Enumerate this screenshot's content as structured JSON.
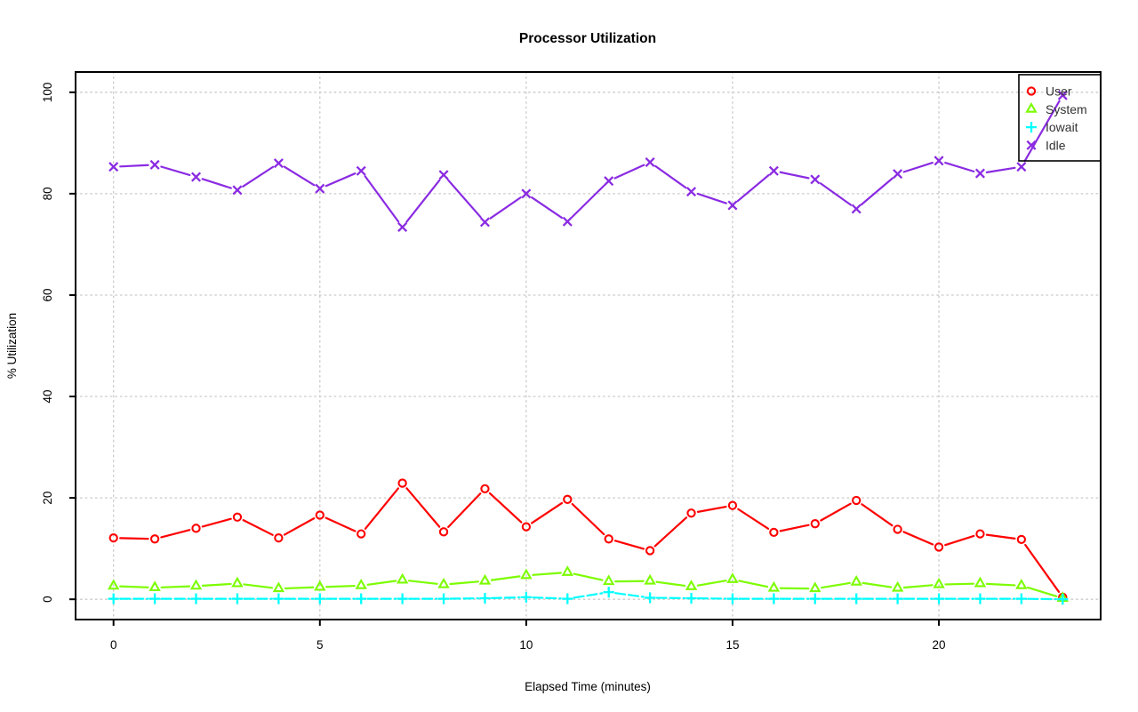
{
  "chart_data": {
    "type": "line",
    "title": "Processor Utilization",
    "xlabel": "Elapsed Time (minutes)",
    "ylabel": "% Utilization",
    "xlim": [
      0,
      23
    ],
    "ylim": [
      0,
      100
    ],
    "xticks": [
      0,
      5,
      10,
      15,
      20
    ],
    "xtick_labels": [
      "0",
      "5",
      "10",
      "15",
      "20"
    ],
    "yticks": [
      0,
      20,
      40,
      60,
      80,
      100
    ],
    "ytick_labels": [
      "0",
      "20",
      "40",
      "60",
      "80",
      "100"
    ],
    "grid": true,
    "grid_style": "dotted",
    "legend_position": "top-right",
    "x": [
      0,
      1,
      2,
      3,
      4,
      5,
      6,
      7,
      8,
      9,
      10,
      11,
      12,
      13,
      14,
      15,
      16,
      17,
      18,
      19,
      20,
      21,
      22,
      23
    ],
    "series": [
      {
        "name": "User",
        "color": "#ff0000",
        "marker": "circle",
        "line_style": "solid",
        "values": [
          12.1,
          11.9,
          14.0,
          16.2,
          12.1,
          16.6,
          12.9,
          22.9,
          13.3,
          21.8,
          14.3,
          19.7,
          11.9,
          9.6,
          17.0,
          18.5,
          13.2,
          14.9,
          19.5,
          13.8,
          10.3,
          12.9,
          11.8,
          0.4
        ]
      },
      {
        "name": "System",
        "color": "#7cfc00",
        "marker": "triangle",
        "line_style": "solid",
        "values": [
          2.6,
          2.3,
          2.6,
          3.1,
          2.1,
          2.4,
          2.7,
          3.8,
          2.9,
          3.6,
          4.7,
          5.3,
          3.5,
          3.6,
          2.5,
          3.9,
          2.2,
          2.1,
          3.4,
          2.2,
          2.9,
          3.1,
          2.7,
          0.2
        ]
      },
      {
        "name": "Iowait",
        "color": "#00ffff",
        "marker": "plus",
        "line_style": "dashed",
        "values": [
          0.1,
          0.1,
          0.1,
          0.1,
          0.1,
          0.1,
          0.1,
          0.1,
          0.1,
          0.2,
          0.4,
          0.1,
          1.4,
          0.3,
          0.2,
          0.1,
          0.1,
          0.1,
          0.1,
          0.1,
          0.1,
          0.1,
          0.1,
          0.0
        ]
      },
      {
        "name": "Idle",
        "color": "#8a2be2",
        "marker": "x",
        "line_style": "solid",
        "values": [
          85.3,
          85.7,
          83.3,
          80.7,
          86.0,
          81.0,
          84.5,
          73.4,
          83.7,
          74.4,
          80.0,
          74.5,
          82.5,
          86.2,
          80.4,
          77.7,
          84.5,
          82.8,
          77.0,
          83.9,
          86.5,
          84.0,
          85.3,
          99.4
        ]
      }
    ],
    "colors": {
      "background": "#ffffff",
      "grid": "#c9c9c9",
      "axis": "#000000",
      "legend_border": "#000000",
      "legend_text": "#333333"
    }
  }
}
